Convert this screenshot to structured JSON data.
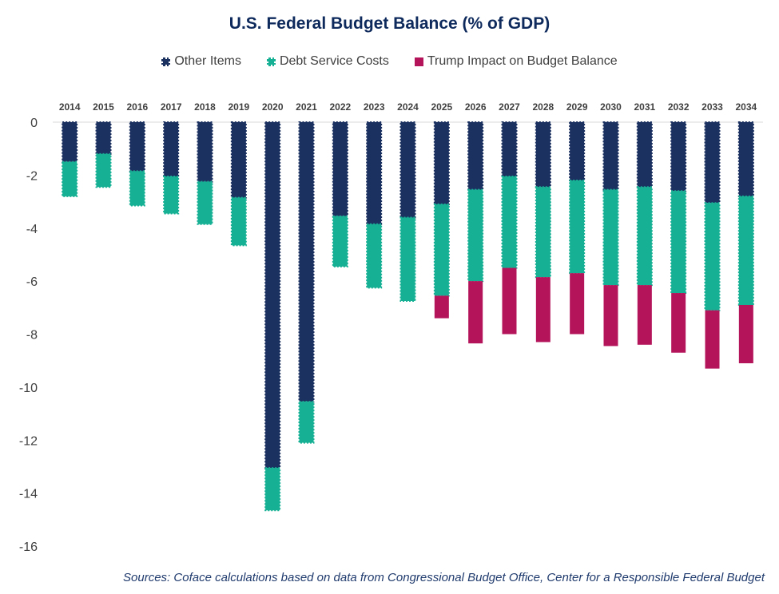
{
  "chart_data": {
    "type": "bar",
    "stacked": true,
    "title": "U.S. Federal Budget Balance (% of GDP)",
    "categories": [
      "2014",
      "2015",
      "2016",
      "2017",
      "2018",
      "2019",
      "2020",
      "2021",
      "2022",
      "2023",
      "2024",
      "2025",
      "2026",
      "2027",
      "2028",
      "2029",
      "2030",
      "2031",
      "2032",
      "2033",
      "2034"
    ],
    "series": [
      {
        "name": "Other Items",
        "color": "#1b3160",
        "values": [
          -1.5,
          -1.2,
          -1.85,
          -2.05,
          -2.25,
          -2.85,
          -13.05,
          -10.55,
          -3.55,
          -3.85,
          -3.6,
          -3.1,
          -2.55,
          -2.05,
          -2.45,
          -2.2,
          -2.55,
          -2.45,
          -2.6,
          -3.05,
          -2.8
        ]
      },
      {
        "name": "Debt Service Costs",
        "color": "#16b094",
        "values": [
          -1.3,
          -1.25,
          -1.3,
          -1.4,
          -1.6,
          -1.8,
          -1.6,
          -1.55,
          -1.9,
          -2.4,
          -3.15,
          -3.45,
          -3.45,
          -3.45,
          -3.4,
          -3.5,
          -3.6,
          -3.7,
          -3.85,
          -4.05,
          -4.1
        ]
      },
      {
        "name": "Trump Impact on Budget Balance",
        "color": "#b4145a",
        "values": [
          0,
          0,
          0,
          0,
          0,
          0,
          0,
          0,
          0,
          0,
          0,
          -0.85,
          -2.35,
          -2.5,
          -2.45,
          -2.3,
          -2.3,
          -2.25,
          -2.25,
          -2.2,
          -2.2
        ]
      }
    ],
    "ylim": [
      -16,
      0
    ],
    "yticks": [
      0,
      -2,
      -4,
      -6,
      -8,
      -10,
      -12,
      -14,
      -16
    ],
    "xaxis_position": "top",
    "legend_position": "top",
    "grid": false,
    "source": "Sources: Coface calculations based on data from Congressional Budget Office, Center for a Responsible Federal Budget"
  }
}
